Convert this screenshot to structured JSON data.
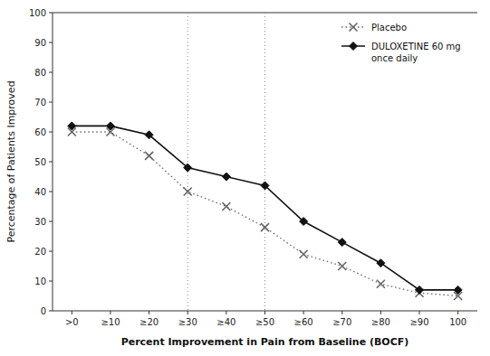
{
  "chart_data": {
    "type": "line",
    "xlabel": "Percent Improvement in Pain from Baseline (BOCF)",
    "ylabel": "Percentage of Patients Improved",
    "categories": [
      ">0",
      "≥10",
      "≥20",
      "≥30",
      "≥40",
      "≥50",
      "≥60",
      "≥70",
      "≥80",
      "≥90",
      "100"
    ],
    "series": [
      {
        "name": "Placebo",
        "color": "#666666",
        "marker": "x",
        "line_style": "dotted",
        "values": [
          60,
          60,
          52,
          40,
          35,
          28,
          19,
          15,
          9,
          6,
          5
        ]
      },
      {
        "name": "DULOXETINE 60 mg\nonce daily",
        "color": "#111111",
        "marker": "diamond",
        "line_style": "solid",
        "values": [
          62,
          62,
          59,
          48,
          45,
          42,
          30,
          23,
          16,
          7,
          7
        ]
      }
    ],
    "vlines": [
      3,
      5
    ],
    "ylim": [
      0,
      100
    ],
    "yticks": [
      0,
      10,
      20,
      30,
      40,
      50,
      60,
      70,
      80,
      90,
      100
    ],
    "grid": false,
    "legend": "upper right"
  }
}
